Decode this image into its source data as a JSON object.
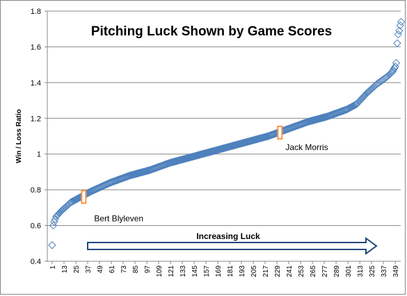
{
  "chart_data": {
    "type": "scatter",
    "title": "Pitching Luck Shown by Game Scores",
    "xlabel": "",
    "ylabel": "Win / Loss Ratio",
    "ylim": [
      0.4,
      1.8
    ],
    "y_ticks": [
      "0.4",
      "0.6",
      "0.8",
      "1",
      "1.2",
      "1.4",
      "1.6",
      "1.8"
    ],
    "xlim": [
      1,
      355
    ],
    "x_ticks": [
      "1",
      "13",
      "25",
      "37",
      "49",
      "61",
      "73",
      "85",
      "97",
      "109",
      "121",
      "133",
      "145",
      "157",
      "169",
      "181",
      "193",
      "205",
      "217",
      "229",
      "241",
      "253",
      "265",
      "277",
      "289",
      "301",
      "313",
      "325",
      "337",
      "349"
    ],
    "grid": "horizontal",
    "legend": "none",
    "marker": "diamond",
    "marker_color": "#4f81bd",
    "highlight_color": "#f79646",
    "arrow_color": "#1f497d",
    "curve_knots": [
      [
        1,
        0.49
      ],
      [
        2,
        0.6
      ],
      [
        3,
        0.62
      ],
      [
        5,
        0.65
      ],
      [
        10,
        0.68
      ],
      [
        20,
        0.73
      ],
      [
        30,
        0.76
      ],
      [
        40,
        0.79
      ],
      [
        60,
        0.84
      ],
      [
        80,
        0.88
      ],
      [
        100,
        0.91
      ],
      [
        120,
        0.95
      ],
      [
        140,
        0.98
      ],
      [
        160,
        1.01
      ],
      [
        180,
        1.04
      ],
      [
        200,
        1.07
      ],
      [
        220,
        1.1
      ],
      [
        240,
        1.14
      ],
      [
        260,
        1.18
      ],
      [
        280,
        1.21
      ],
      [
        300,
        1.25
      ],
      [
        310,
        1.28
      ],
      [
        320,
        1.34
      ],
      [
        330,
        1.39
      ],
      [
        340,
        1.43
      ],
      [
        346,
        1.46
      ],
      [
        349,
        1.49
      ]
    ],
    "outliers": [
      [
        350,
        1.51
      ],
      [
        351,
        1.62
      ],
      [
        352,
        1.67
      ],
      [
        353,
        1.69
      ],
      [
        354,
        1.72
      ],
      [
        355,
        1.74
      ]
    ],
    "annotations": [
      {
        "label": "Bert Blyleven",
        "x": 33,
        "y": 0.76
      },
      {
        "label": "Jack Morris",
        "x": 232,
        "y": 1.12
      }
    ],
    "arrow_label": "Increasing Luck"
  }
}
